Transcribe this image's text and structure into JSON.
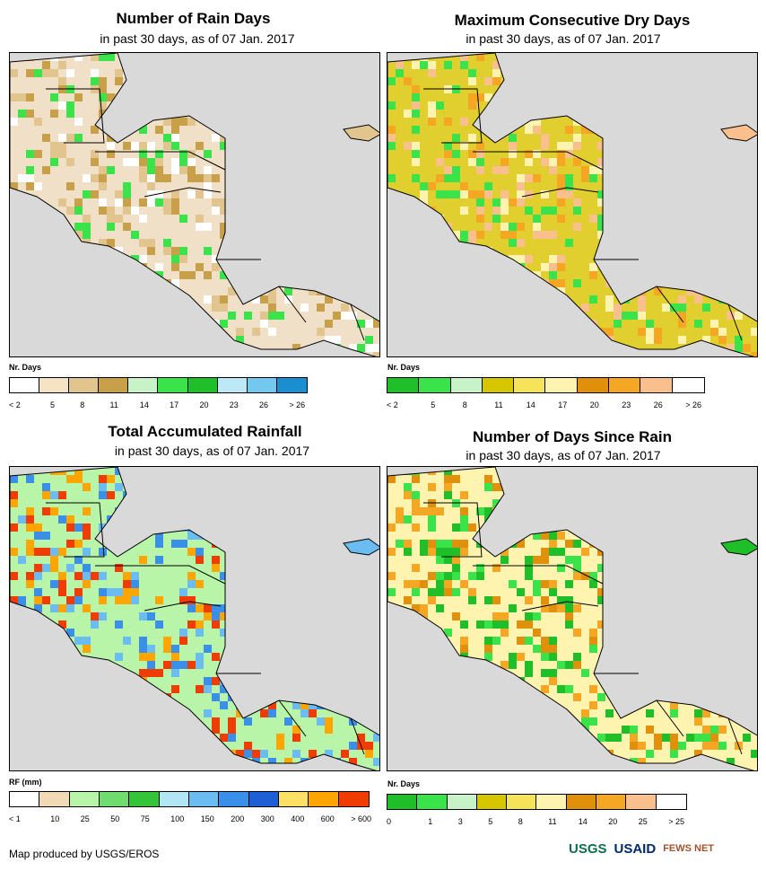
{
  "panels": [
    {
      "title": "Number of Rain Days",
      "subtitle": "in past 30 days, as of 07 Jan. 2017",
      "legend_title": "Nr. Days",
      "legend_colors": [
        "#ffffff",
        "#f5e3c4",
        "#e2c48e",
        "#c8a049",
        "#c8f2c8",
        "#3be34a",
        "#1fbf2a",
        "#bde8f5",
        "#72c8ef",
        "#1a8fd0"
      ],
      "legend_labels": [
        "< 2",
        "5",
        "8",
        "11",
        "14",
        "17",
        "20",
        "23",
        "26",
        "> 26"
      ],
      "land_color": "#f0e0c8",
      "accents": [
        "#c8a049",
        "#e2c48e",
        "#3be34a",
        "#ffffff"
      ]
    },
    {
      "title": "Maximum Consecutive Dry Days",
      "subtitle": "in past 30 days, as of 07 Jan. 2017",
      "legend_title": "Nr. Days",
      "legend_colors": [
        "#1fbf2a",
        "#3be34a",
        "#c8f2c8",
        "#d6c600",
        "#f5e35a",
        "#fff3b0",
        "#e0900a",
        "#f5a623",
        "#f9c08e",
        "#ffffff"
      ],
      "legend_labels": [
        "< 2",
        "5",
        "8",
        "11",
        "14",
        "17",
        "20",
        "23",
        "26",
        "> 26"
      ],
      "land_color": "#e0cf2e",
      "accents": [
        "#f5a623",
        "#f9c08e",
        "#3be34a",
        "#fff3b0"
      ]
    },
    {
      "title": "Total Accumulated Rainfall",
      "subtitle": "in past 30 days, as of 07 Jan. 2017",
      "legend_title": "RF (mm)",
      "legend_colors": [
        "#ffffff",
        "#f0d9b5",
        "#b8f5a8",
        "#6fdc6f",
        "#34c43a",
        "#b3e6f5",
        "#6bbcf0",
        "#3a8fe8",
        "#1f5fd6",
        "#ffe066",
        "#ffa500",
        "#f03c00"
      ],
      "legend_labels": [
        "< 1",
        "10",
        "25",
        "50",
        "75",
        "100",
        "150",
        "200",
        "300",
        "400",
        "600",
        "> 600"
      ],
      "land_color": "#b8f5a8",
      "accents": [
        "#3a8fe8",
        "#6bbcf0",
        "#f03c00",
        "#ffa500"
      ]
    },
    {
      "title": "Number of Days Since Rain",
      "subtitle": "in past 30 days, as of 07 Jan. 2017",
      "legend_title": "Nr. Days",
      "legend_colors": [
        "#1fbf2a",
        "#3be34a",
        "#c8f2c8",
        "#d6c600",
        "#f5e35a",
        "#fff3b0",
        "#e0900a",
        "#f5a623",
        "#f9c08e",
        "#ffffff"
      ],
      "legend_labels": [
        "0",
        "1",
        "3",
        "5",
        "8",
        "11",
        "14",
        "20",
        "25",
        "> 25"
      ],
      "land_color": "#fff3b0",
      "accents": [
        "#e0900a",
        "#1fbf2a",
        "#3be34a",
        "#f5a623"
      ]
    }
  ],
  "footer": {
    "credit": "Map produced by USGS/EROS",
    "logos": [
      "USGS",
      "USAID",
      "FEWS NET"
    ]
  }
}
